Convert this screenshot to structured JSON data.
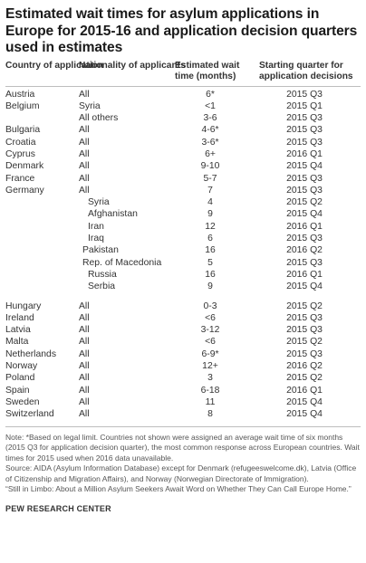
{
  "title": "Estimated wait times for asylum applications in Europe for 2015-16 and application decision quarters used in estimates",
  "columns": {
    "country": "Country of application",
    "nationality": "Nationality of applicants",
    "wait": "Estimated wait time (months)",
    "quarter": "Starting quarter for application decisions"
  },
  "rows": [
    {
      "country": "Austria",
      "nationality": "All",
      "wait": "6*",
      "quarter": "2015 Q3"
    },
    {
      "country": "Belgium",
      "nationality": "Syria",
      "wait": "<1",
      "quarter": "2015 Q1"
    },
    {
      "country": "",
      "nationality": "All others",
      "wait": "3-6",
      "quarter": "2015 Q3"
    },
    {
      "country": "Bulgaria",
      "nationality": "All",
      "wait": "4-6*",
      "quarter": "2015 Q3"
    },
    {
      "country": "Croatia",
      "nationality": "All",
      "wait": "3-6*",
      "quarter": "2015 Q3"
    },
    {
      "country": "Cyprus",
      "nationality": "All",
      "wait": "6+",
      "quarter": "2016 Q1"
    },
    {
      "country": "Denmark",
      "nationality": "All",
      "wait": "9-10",
      "quarter": "2015 Q4"
    },
    {
      "country": "France",
      "nationality": "All",
      "wait": "5-7",
      "quarter": "2015 Q3"
    },
    {
      "country": "Germany",
      "nationality": "All",
      "wait": "7",
      "quarter": "2015 Q3"
    },
    {
      "country": "",
      "nationality": "Syria",
      "wait": "4",
      "quarter": "2015 Q2",
      "indent": 2
    },
    {
      "country": "",
      "nationality": "Afghanistan",
      "wait": "9",
      "quarter": "2015 Q4",
      "indent": 2
    },
    {
      "country": "",
      "nationality": "Iran",
      "wait": "12",
      "quarter": "2016 Q1",
      "indent": 2
    },
    {
      "country": "",
      "nationality": "Iraq",
      "wait": "6",
      "quarter": "2015 Q3",
      "indent": 2
    },
    {
      "country": "",
      "nationality": "Pakistan",
      "wait": "16",
      "quarter": "2016 Q2",
      "indent": 1
    },
    {
      "country": "",
      "nationality": "Rep. of Macedonia",
      "wait": "5",
      "quarter": "2015 Q3",
      "indent": 1
    },
    {
      "country": "",
      "nationality": "Russia",
      "wait": "16",
      "quarter": "2016 Q1",
      "indent": 2
    },
    {
      "country": "",
      "nationality": "Serbia",
      "wait": "9",
      "quarter": "2015 Q4",
      "indent": 2
    },
    {
      "country": "Hungary",
      "nationality": "All",
      "wait": "0-3",
      "quarter": "2015 Q2",
      "gap": true
    },
    {
      "country": "Ireland",
      "nationality": "All",
      "wait": "<6",
      "quarter": "2015 Q3"
    },
    {
      "country": "Latvia",
      "nationality": "All",
      "wait": "3-12",
      "quarter": "2015 Q3"
    },
    {
      "country": "Malta",
      "nationality": "All",
      "wait": "<6",
      "quarter": "2015 Q2"
    },
    {
      "country": "Netherlands",
      "nationality": "All",
      "wait": "6-9*",
      "quarter": "2015 Q3"
    },
    {
      "country": "Norway",
      "nationality": "All",
      "wait": "12+",
      "quarter": "2016 Q2"
    },
    {
      "country": "Poland",
      "nationality": "All",
      "wait": "3",
      "quarter": "2015 Q2"
    },
    {
      "country": "Spain",
      "nationality": "All",
      "wait": "6-18",
      "quarter": "2016 Q1"
    },
    {
      "country": "Sweden",
      "nationality": "All",
      "wait": "11",
      "quarter": "2015 Q4"
    },
    {
      "country": "Switzerland",
      "nationality": "All",
      "wait": "8",
      "quarter": "2015 Q4"
    }
  ],
  "notes": [
    "Note: *Based on legal limit. Countries not shown were assigned an average wait time of six months (2015 Q3 for application decision quarter), the most common response across European countries. Wait times for 2015 used when 2016 data unavailable.",
    "Source: AIDA (Asylum Information Database) except for Denmark (refugeeswelcome.dk), Latvia (Office of Citizenship and Migration Affairs), and Norway (Norwegian Directorate of Immigration).",
    "“Still in Limbo: About a Million Asylum Seekers Await Word on Whether They Can Call Europe Home.”"
  ],
  "brand": "PEW RESEARCH CENTER"
}
